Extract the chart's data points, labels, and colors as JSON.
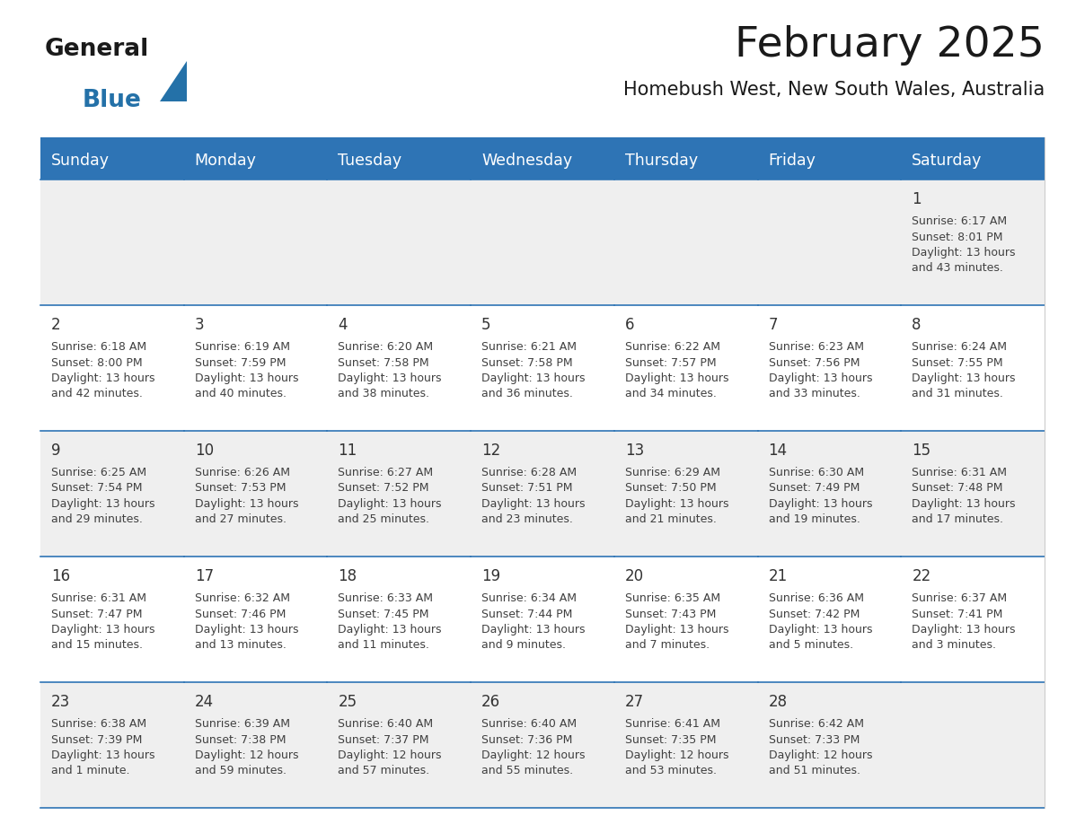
{
  "title": "February 2025",
  "subtitle": "Homebush West, New South Wales, Australia",
  "days_of_week": [
    "Sunday",
    "Monday",
    "Tuesday",
    "Wednesday",
    "Thursday",
    "Friday",
    "Saturday"
  ],
  "header_bg": "#2E74B5",
  "header_text_color": "#FFFFFF",
  "cell_bg_odd": "#EFEFEF",
  "cell_bg_even": "#FFFFFF",
  "separator_color": "#2E74B5",
  "text_color": "#404040",
  "date_color": "#333333",
  "logo_general_color": "#1a1a1a",
  "logo_blue_color": "#2471A8",
  "calendar_data": [
    [
      null,
      null,
      null,
      null,
      null,
      null,
      {
        "day": "1",
        "sunrise": "6:17 AM",
        "sunset": "8:01 PM",
        "daylight_h": "13",
        "daylight_m": "43 minutes."
      }
    ],
    [
      {
        "day": "2",
        "sunrise": "6:18 AM",
        "sunset": "8:00 PM",
        "daylight_h": "13",
        "daylight_m": "42 minutes."
      },
      {
        "day": "3",
        "sunrise": "6:19 AM",
        "sunset": "7:59 PM",
        "daylight_h": "13",
        "daylight_m": "40 minutes."
      },
      {
        "day": "4",
        "sunrise": "6:20 AM",
        "sunset": "7:58 PM",
        "daylight_h": "13",
        "daylight_m": "38 minutes."
      },
      {
        "day": "5",
        "sunrise": "6:21 AM",
        "sunset": "7:58 PM",
        "daylight_h": "13",
        "daylight_m": "36 minutes."
      },
      {
        "day": "6",
        "sunrise": "6:22 AM",
        "sunset": "7:57 PM",
        "daylight_h": "13",
        "daylight_m": "34 minutes."
      },
      {
        "day": "7",
        "sunrise": "6:23 AM",
        "sunset": "7:56 PM",
        "daylight_h": "13",
        "daylight_m": "33 minutes."
      },
      {
        "day": "8",
        "sunrise": "6:24 AM",
        "sunset": "7:55 PM",
        "daylight_h": "13",
        "daylight_m": "31 minutes."
      }
    ],
    [
      {
        "day": "9",
        "sunrise": "6:25 AM",
        "sunset": "7:54 PM",
        "daylight_h": "13",
        "daylight_m": "29 minutes."
      },
      {
        "day": "10",
        "sunrise": "6:26 AM",
        "sunset": "7:53 PM",
        "daylight_h": "13",
        "daylight_m": "27 minutes."
      },
      {
        "day": "11",
        "sunrise": "6:27 AM",
        "sunset": "7:52 PM",
        "daylight_h": "13",
        "daylight_m": "25 minutes."
      },
      {
        "day": "12",
        "sunrise": "6:28 AM",
        "sunset": "7:51 PM",
        "daylight_h": "13",
        "daylight_m": "23 minutes."
      },
      {
        "day": "13",
        "sunrise": "6:29 AM",
        "sunset": "7:50 PM",
        "daylight_h": "13",
        "daylight_m": "21 minutes."
      },
      {
        "day": "14",
        "sunrise": "6:30 AM",
        "sunset": "7:49 PM",
        "daylight_h": "13",
        "daylight_m": "19 minutes."
      },
      {
        "day": "15",
        "sunrise": "6:31 AM",
        "sunset": "7:48 PM",
        "daylight_h": "13",
        "daylight_m": "17 minutes."
      }
    ],
    [
      {
        "day": "16",
        "sunrise": "6:31 AM",
        "sunset": "7:47 PM",
        "daylight_h": "13",
        "daylight_m": "15 minutes."
      },
      {
        "day": "17",
        "sunrise": "6:32 AM",
        "sunset": "7:46 PM",
        "daylight_h": "13",
        "daylight_m": "13 minutes."
      },
      {
        "day": "18",
        "sunrise": "6:33 AM",
        "sunset": "7:45 PM",
        "daylight_h": "13",
        "daylight_m": "11 minutes."
      },
      {
        "day": "19",
        "sunrise": "6:34 AM",
        "sunset": "7:44 PM",
        "daylight_h": "13",
        "daylight_m": "9 minutes."
      },
      {
        "day": "20",
        "sunrise": "6:35 AM",
        "sunset": "7:43 PM",
        "daylight_h": "13",
        "daylight_m": "7 minutes."
      },
      {
        "day": "21",
        "sunrise": "6:36 AM",
        "sunset": "7:42 PM",
        "daylight_h": "13",
        "daylight_m": "5 minutes."
      },
      {
        "day": "22",
        "sunrise": "6:37 AM",
        "sunset": "7:41 PM",
        "daylight_h": "13",
        "daylight_m": "3 minutes."
      }
    ],
    [
      {
        "day": "23",
        "sunrise": "6:38 AM",
        "sunset": "7:39 PM",
        "daylight_h": "13",
        "daylight_m": "1 minute."
      },
      {
        "day": "24",
        "sunrise": "6:39 AM",
        "sunset": "7:38 PM",
        "daylight_h": "12",
        "daylight_m": "59 minutes."
      },
      {
        "day": "25",
        "sunrise": "6:40 AM",
        "sunset": "7:37 PM",
        "daylight_h": "12",
        "daylight_m": "57 minutes."
      },
      {
        "day": "26",
        "sunrise": "6:40 AM",
        "sunset": "7:36 PM",
        "daylight_h": "12",
        "daylight_m": "55 minutes."
      },
      {
        "day": "27",
        "sunrise": "6:41 AM",
        "sunset": "7:35 PM",
        "daylight_h": "12",
        "daylight_m": "53 minutes."
      },
      {
        "day": "28",
        "sunrise": "6:42 AM",
        "sunset": "7:33 PM",
        "daylight_h": "12",
        "daylight_m": "51 minutes."
      },
      null
    ]
  ]
}
